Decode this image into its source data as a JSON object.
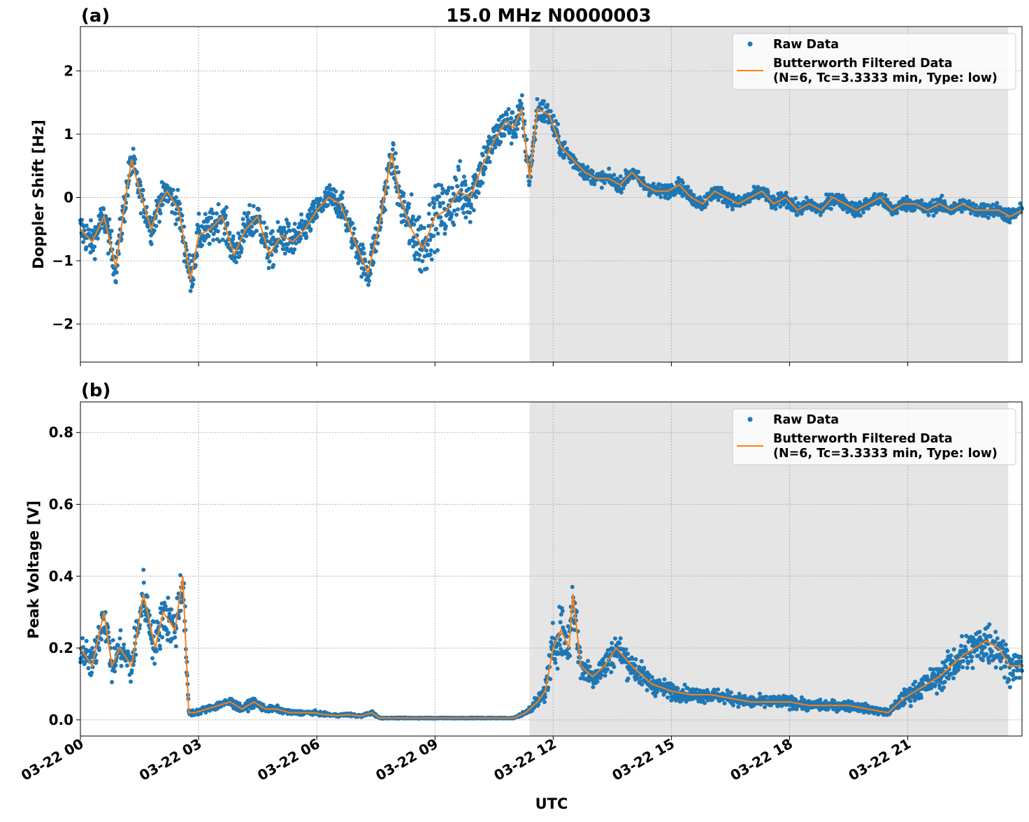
{
  "chart_data": {
    "type": "scatter",
    "title": "15.0 MHz N0000003",
    "xlabel": "UTC",
    "x_unit": "hours since 03-22 00:00 UTC",
    "xlim": [
      0,
      23.9
    ],
    "x_ticks": [
      0,
      3,
      6,
      9,
      12,
      15,
      18,
      21
    ],
    "x_tick_labels": [
      "03-22 00",
      "03-22 03",
      "03-22 06",
      "03-22 09",
      "03-22 12",
      "03-22 15",
      "03-22 18",
      "03-22 21"
    ],
    "shaded_region": [
      11.4,
      23.55
    ],
    "grid": true,
    "colors": {
      "raw": "#1f77b4",
      "filtered": "#ff7f0e",
      "shade": "#e5e5e5"
    },
    "legend": {
      "position": "top-right",
      "raw_label": "Raw Data",
      "filtered_label_line1": "Butterworth Filtered Data",
      "filtered_label_line2": "(N=6, Tc=3.3333 min, Type: low)"
    },
    "panels": [
      {
        "label": "(a)",
        "ylabel": "Doppler Shift [Hz]",
        "ylim": [
          -2.6,
          2.7
        ],
        "y_ticks": [
          -2,
          -1,
          0,
          1,
          2
        ],
        "y_tick_labels": [
          "−2",
          "−1",
          "0",
          "1",
          "2"
        ],
        "filtered": {
          "x": [
            0,
            0.3,
            0.6,
            0.9,
            1.1,
            1.3,
            1.5,
            1.8,
            2.0,
            2.2,
            2.5,
            2.8,
            3.0,
            3.3,
            3.6,
            3.9,
            4.2,
            4.5,
            4.8,
            5.1,
            5.4,
            5.7,
            6.0,
            6.3,
            6.6,
            6.9,
            7.3,
            7.6,
            7.9,
            8.1,
            8.4,
            8.7,
            9.0,
            9.3,
            9.6,
            9.9,
            10.2,
            10.5,
            10.8,
            11.0,
            11.2,
            11.4,
            11.6,
            11.9,
            12.2,
            12.5,
            12.8,
            13.1,
            13.4,
            13.7,
            14.0,
            14.3,
            14.6,
            14.9,
            15.2,
            15.5,
            15.8,
            16.1,
            16.4,
            16.7,
            17.0,
            17.3,
            17.6,
            17.9,
            18.2,
            18.5,
            18.8,
            19.1,
            19.4,
            19.7,
            20.0,
            20.3,
            20.6,
            20.9,
            21.2,
            21.5,
            21.8,
            22.1,
            22.4,
            22.7,
            23.0,
            23.3,
            23.6,
            23.9
          ],
          "y": [
            -0.5,
            -0.7,
            -0.3,
            -1.1,
            -0.2,
            0.6,
            0.1,
            -0.5,
            -0.1,
            0.1,
            -0.2,
            -1.3,
            -0.6,
            -0.5,
            -0.3,
            -0.9,
            -0.5,
            -0.3,
            -0.9,
            -0.6,
            -0.7,
            -0.5,
            -0.2,
            0.0,
            -0.1,
            -0.6,
            -1.2,
            -0.4,
            0.7,
            0.0,
            -0.5,
            -0.8,
            -0.3,
            -0.2,
            0.1,
            0.0,
            0.5,
            0.9,
            1.2,
            1.1,
            1.4,
            0.3,
            1.4,
            1.3,
            0.8,
            0.6,
            0.4,
            0.3,
            0.3,
            0.2,
            0.4,
            0.2,
            0.1,
            0.1,
            0.2,
            0.0,
            -0.1,
            0.1,
            0.0,
            -0.1,
            0.0,
            0.1,
            -0.1,
            0.0,
            -0.2,
            -0.1,
            -0.2,
            0.0,
            -0.1,
            -0.2,
            -0.1,
            0.0,
            -0.2,
            -0.1,
            -0.1,
            -0.2,
            -0.1,
            -0.2,
            -0.1,
            -0.2,
            -0.2,
            -0.2,
            -0.3,
            -0.2
          ],
          "spread": [
            0.5,
            0.5,
            0.5,
            0.5,
            0.5,
            0.5,
            0.4,
            0.4,
            0.4,
            0.4,
            0.5,
            0.5,
            0.5,
            0.5,
            0.5,
            0.5,
            0.5,
            0.5,
            0.5,
            0.5,
            0.5,
            0.4,
            0.4,
            0.4,
            0.4,
            0.4,
            0.5,
            0.5,
            0.5,
            0.6,
            0.9,
            0.9,
            0.8,
            0.8,
            0.8,
            0.7,
            0.6,
            0.5,
            0.5,
            0.5,
            0.5,
            0.4,
            0.4,
            0.35,
            0.3,
            0.25,
            0.2,
            0.2,
            0.2,
            0.2,
            0.2,
            0.2,
            0.2,
            0.2,
            0.2,
            0.2,
            0.2,
            0.2,
            0.2,
            0.2,
            0.2,
            0.2,
            0.2,
            0.2,
            0.2,
            0.2,
            0.2,
            0.2,
            0.2,
            0.2,
            0.2,
            0.2,
            0.2,
            0.2,
            0.2,
            0.2,
            0.2,
            0.2,
            0.2,
            0.2,
            0.2,
            0.2,
            0.2,
            0.2
          ]
        }
      },
      {
        "label": "(b)",
        "ylabel": "Peak Voltage [V]",
        "ylim": [
          -0.045,
          0.885
        ],
        "y_ticks": [
          0.0,
          0.2,
          0.4,
          0.6,
          0.8
        ],
        "y_tick_labels": [
          "0.0",
          "0.2",
          "0.4",
          "0.6",
          "0.8"
        ],
        "filtered": {
          "x": [
            0,
            0.3,
            0.6,
            0.8,
            1.0,
            1.3,
            1.6,
            1.9,
            2.1,
            2.4,
            2.6,
            2.75,
            2.9,
            3.2,
            3.5,
            3.8,
            4.1,
            4.4,
            4.7,
            5.0,
            5.3,
            5.6,
            5.9,
            6.2,
            6.5,
            6.8,
            7.1,
            7.4,
            7.6,
            8.0,
            9.0,
            10.0,
            11.0,
            11.3,
            11.6,
            11.8,
            12.0,
            12.2,
            12.4,
            12.5,
            12.7,
            13.0,
            13.3,
            13.6,
            14.0,
            14.5,
            15.0,
            15.5,
            16.0,
            16.5,
            17.0,
            17.5,
            18.0,
            18.5,
            19.0,
            19.5,
            20.0,
            20.5,
            20.9,
            21.2,
            21.5,
            21.8,
            22.1,
            22.4,
            22.7,
            23.0,
            23.3,
            23.6,
            23.9
          ],
          "y": [
            0.2,
            0.15,
            0.3,
            0.15,
            0.2,
            0.15,
            0.35,
            0.2,
            0.3,
            0.25,
            0.4,
            0.02,
            0.02,
            0.03,
            0.04,
            0.05,
            0.03,
            0.05,
            0.03,
            0.03,
            0.02,
            0.02,
            0.02,
            0.015,
            0.012,
            0.015,
            0.01,
            0.02,
            0.005,
            0.005,
            0.005,
            0.005,
            0.005,
            0.02,
            0.05,
            0.08,
            0.2,
            0.25,
            0.2,
            0.35,
            0.15,
            0.12,
            0.15,
            0.2,
            0.15,
            0.1,
            0.08,
            0.07,
            0.07,
            0.06,
            0.05,
            0.05,
            0.05,
            0.04,
            0.04,
            0.04,
            0.03,
            0.02,
            0.06,
            0.08,
            0.1,
            0.12,
            0.15,
            0.18,
            0.2,
            0.22,
            0.2,
            0.15,
            0.15
          ],
          "spread": [
            0.08,
            0.08,
            0.1,
            0.09,
            0.08,
            0.1,
            0.12,
            0.1,
            0.12,
            0.12,
            0.15,
            0.02,
            0.015,
            0.015,
            0.02,
            0.025,
            0.015,
            0.025,
            0.015,
            0.015,
            0.01,
            0.01,
            0.01,
            0.008,
            0.006,
            0.008,
            0.005,
            0.01,
            0.002,
            0.002,
            0.002,
            0.002,
            0.002,
            0.01,
            0.03,
            0.05,
            0.12,
            0.12,
            0.12,
            0.15,
            0.08,
            0.06,
            0.07,
            0.08,
            0.07,
            0.05,
            0.04,
            0.035,
            0.035,
            0.03,
            0.03,
            0.03,
            0.03,
            0.025,
            0.025,
            0.025,
            0.02,
            0.015,
            0.04,
            0.05,
            0.06,
            0.07,
            0.08,
            0.1,
            0.1,
            0.12,
            0.1,
            0.08,
            0.08
          ]
        }
      }
    ]
  }
}
